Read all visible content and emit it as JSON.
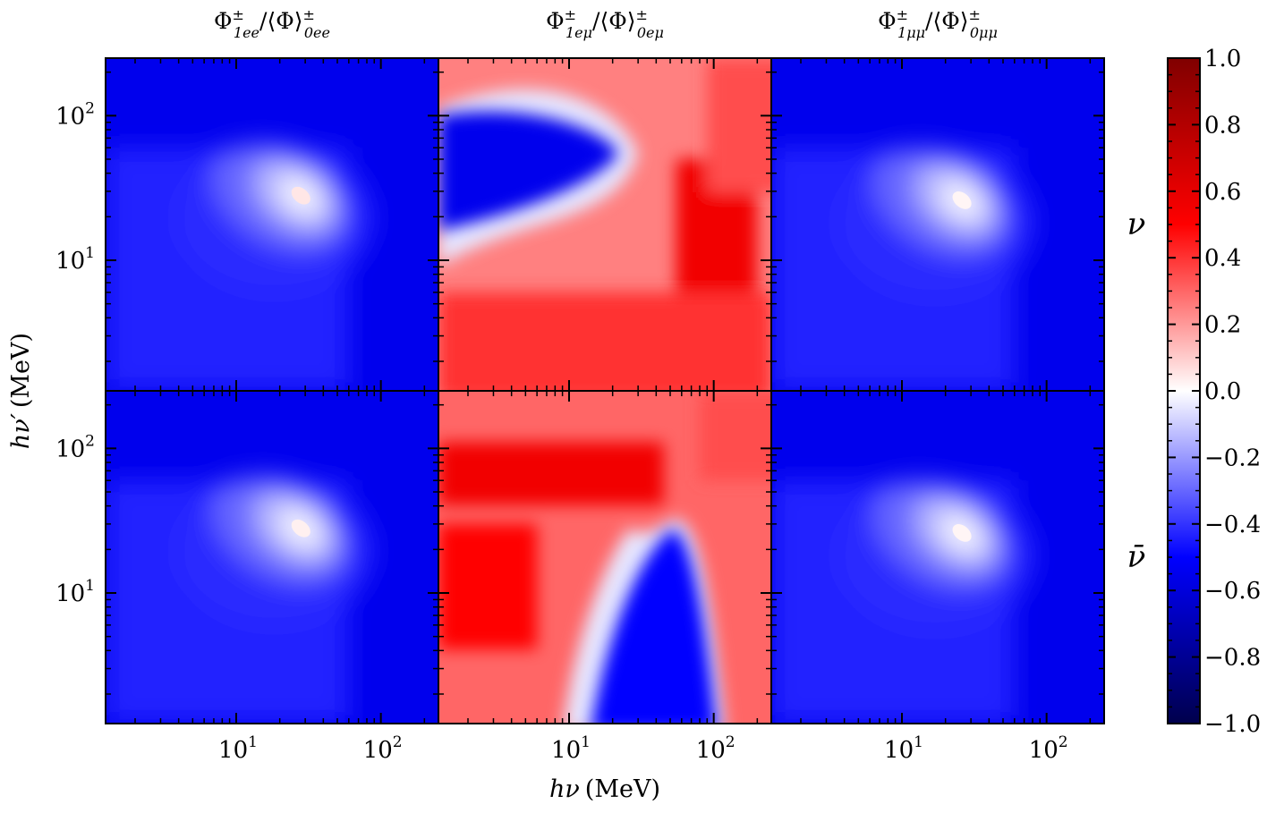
{
  "chart_data": {
    "type": "heatmap",
    "column_titles": [
      {
        "base": "Φ",
        "sup1": "±",
        "sub1": "1ee",
        "mid": "/⟨Φ⟩",
        "sup2": "±",
        "sub2": "0ee"
      },
      {
        "base": "Φ",
        "sup1": "±",
        "sub1": "1eμ",
        "mid": "/⟨Φ⟩",
        "sup2": "±",
        "sub2": "0eμ"
      },
      {
        "base": "Φ",
        "sup1": "±",
        "sub1": "1μμ",
        "mid": "/⟨Φ⟩",
        "sup2": "±",
        "sub2": "0μμ"
      }
    ],
    "row_labels": [
      "ν",
      "ν̄"
    ],
    "xlabel": {
      "var": "hν",
      "unit": "(MeV)"
    },
    "ylabel": {
      "var": "hν′",
      "unit": "(MeV)"
    },
    "axis_scale": "log",
    "axis_range_mev": [
      1.25,
      250
    ],
    "x_ticks": [
      {
        "base": "10",
        "exp": "1",
        "value": 10
      },
      {
        "base": "10",
        "exp": "2",
        "value": 100
      }
    ],
    "y_ticks": [
      {
        "base": "10",
        "exp": "1",
        "value": 10
      },
      {
        "base": "10",
        "exp": "2",
        "value": 100
      }
    ],
    "colorbar": {
      "colormap": "seismic",
      "range": [
        -1.0,
        1.0
      ],
      "ticks": [
        "1.0",
        "0.8",
        "0.6",
        "0.4",
        "0.2",
        "0.0",
        "−0.2",
        "−0.4",
        "−0.6",
        "−0.8",
        "−1.0"
      ],
      "tick_values": [
        1.0,
        0.8,
        0.6,
        0.4,
        0.2,
        0.0,
        -0.2,
        -0.4,
        -0.6,
        -0.8,
        -1.0
      ]
    },
    "panels": [
      {
        "row": "ν",
        "column": "1ee",
        "background_value": -0.55,
        "feature": "peak near hν ≈ hν′ ≈ 28 MeV",
        "peak_value": 0.05
      },
      {
        "row": "ν",
        "column": "1eμ",
        "background_value": 0.25,
        "feature": "negative lobe at low hν, hν′ 10–100 MeV",
        "min_value": -0.55
      },
      {
        "row": "ν",
        "column": "1μμ",
        "background_value": -0.55,
        "feature": "peak near hν ≈ hν′ ≈ 26 MeV",
        "peak_value": 0.02
      },
      {
        "row": "ν̄",
        "column": "1ee",
        "background_value": -0.55,
        "feature": "peak near hν ≈ hν′ ≈ 28 MeV",
        "peak_value": 0.03
      },
      {
        "row": "ν̄",
        "column": "1eμ",
        "background_value": 0.3,
        "feature": "negative lobe at hν 10–100 MeV, low hν′",
        "min_value": -0.5
      },
      {
        "row": "ν̄",
        "column": "1μμ",
        "background_value": -0.55,
        "feature": "peak near hν ≈ hν′ ≈ 26 MeV",
        "peak_value": 0.02
      }
    ]
  }
}
